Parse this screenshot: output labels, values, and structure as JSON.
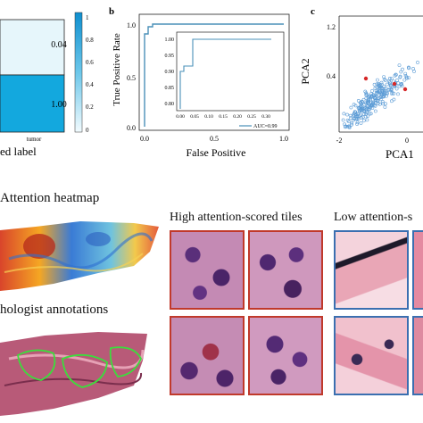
{
  "panel_a": {
    "cell_top": "0.04",
    "cell_bottom": "1.00",
    "col_label": "tumor",
    "xlabel": "ed label",
    "colorbar_ticks": [
      "1",
      "0.8",
      "0.6",
      "0.4",
      "0.2",
      "0"
    ]
  },
  "panel_b": {
    "letter": "b",
    "ylabel": "True Positive Rate",
    "xlabel": "False Positive",
    "x_ticks": [
      "0.0",
      "0.5",
      "1.0"
    ],
    "y_ticks": [
      "1.0",
      "0.5",
      "0.0"
    ],
    "inset_y_ticks": [
      "1.00",
      "0.95",
      "0.90",
      "0.85",
      "0.80"
    ],
    "inset_x_ticks": [
      "0.00",
      "0.05",
      "0.10",
      "0.15",
      "0.20",
      "0.25",
      "0.30"
    ],
    "legend": "AUC=0.99"
  },
  "panel_c": {
    "letter": "c",
    "ylabel": "PCA2",
    "xlabel": "PCA1",
    "y_ticks": [
      "1.2",
      "0.4"
    ],
    "x_ticks": [
      "-2",
      "0"
    ]
  },
  "headings": {
    "attention_heatmap": "Attention heatmap",
    "pathologist": "hologist annotations",
    "high_tiles": "High attention-scored tiles",
    "low_tiles": "Low attention-s"
  },
  "colors": {
    "heat_cell": "#13a8de",
    "light_cell": "#e6f6fb",
    "roc_line": "#4a90b8",
    "scatter": "#5b9bd5",
    "scatter_highlight": "#d62728",
    "high_border": "#c0392b",
    "low_border": "#3b6fb0"
  },
  "chart_data": [
    {
      "type": "heatmap",
      "categories": [
        "tumor"
      ],
      "values": [
        [
          0.04
        ],
        [
          1.0
        ]
      ]
    },
    {
      "type": "line",
      "xlabel": "False Positive",
      "ylabel": "True Positive Rate",
      "xlim": [
        0,
        1
      ],
      "ylim": [
        0,
        1
      ],
      "series": [
        {
          "name": "AUC=0.99",
          "x": [
            0,
            0,
            0.02,
            0.02,
            0.05,
            0.05,
            1.0
          ],
          "y": [
            0,
            0.83,
            0.83,
            0.97,
            0.97,
            1.0,
            1.0
          ]
        }
      ]
    },
    {
      "type": "scatter",
      "xlabel": "PCA1",
      "ylabel": "PCA2"
    }
  ]
}
